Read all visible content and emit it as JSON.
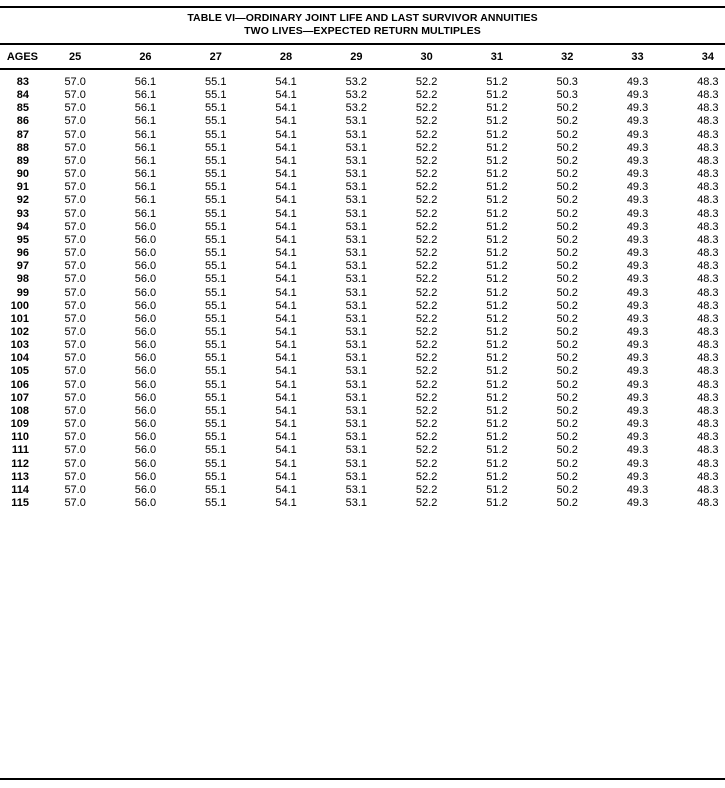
{
  "title": {
    "line1": "TABLE VI—ORDINARY JOINT LIFE AND LAST SURVIVOR ANNUITIES",
    "line2": "TWO LIVES—EXPECTED RETURN MULTIPLES"
  },
  "table": {
    "age_header": "AGES",
    "columns": [
      "25",
      "26",
      "27",
      "28",
      "29",
      "30",
      "31",
      "32",
      "33",
      "34"
    ],
    "rows": [
      {
        "age": "83",
        "values": [
          "57.0",
          "56.1",
          "55.1",
          "54.1",
          "53.2",
          "52.2",
          "51.2",
          "50.3",
          "49.3",
          "48.3"
        ]
      },
      {
        "age": "84",
        "values": [
          "57.0",
          "56.1",
          "55.1",
          "54.1",
          "53.2",
          "52.2",
          "51.2",
          "50.3",
          "49.3",
          "48.3"
        ]
      },
      {
        "age": "85",
        "values": [
          "57.0",
          "56.1",
          "55.1",
          "54.1",
          "53.2",
          "52.2",
          "51.2",
          "50.2",
          "49.3",
          "48.3"
        ]
      },
      {
        "age": "86",
        "values": [
          "57.0",
          "56.1",
          "55.1",
          "54.1",
          "53.1",
          "52.2",
          "51.2",
          "50.2",
          "49.3",
          "48.3"
        ]
      },
      {
        "age": "87",
        "values": [
          "57.0",
          "56.1",
          "55.1",
          "54.1",
          "53.1",
          "52.2",
          "51.2",
          "50.2",
          "49.3",
          "48.3"
        ]
      },
      {
        "age": "88",
        "values": [
          "57.0",
          "56.1",
          "55.1",
          "54.1",
          "53.1",
          "52.2",
          "51.2",
          "50.2",
          "49.3",
          "48.3"
        ]
      },
      {
        "age": "89",
        "values": [
          "57.0",
          "56.1",
          "55.1",
          "54.1",
          "53.1",
          "52.2",
          "51.2",
          "50.2",
          "49.3",
          "48.3"
        ]
      },
      {
        "age": "90",
        "values": [
          "57.0",
          "56.1",
          "55.1",
          "54.1",
          "53.1",
          "52.2",
          "51.2",
          "50.2",
          "49.3",
          "48.3"
        ]
      },
      {
        "age": "91",
        "values": [
          "57.0",
          "56.1",
          "55.1",
          "54.1",
          "53.1",
          "52.2",
          "51.2",
          "50.2",
          "49.3",
          "48.3"
        ]
      },
      {
        "age": "92",
        "values": [
          "57.0",
          "56.1",
          "55.1",
          "54.1",
          "53.1",
          "52.2",
          "51.2",
          "50.2",
          "49.3",
          "48.3"
        ]
      },
      {
        "age": "93",
        "values": [
          "57.0",
          "56.1",
          "55.1",
          "54.1",
          "53.1",
          "52.2",
          "51.2",
          "50.2",
          "49.3",
          "48.3"
        ]
      },
      {
        "age": "94",
        "values": [
          "57.0",
          "56.0",
          "55.1",
          "54.1",
          "53.1",
          "52.2",
          "51.2",
          "50.2",
          "49.3",
          "48.3"
        ]
      },
      {
        "age": "95",
        "values": [
          "57.0",
          "56.0",
          "55.1",
          "54.1",
          "53.1",
          "52.2",
          "51.2",
          "50.2",
          "49.3",
          "48.3"
        ]
      },
      {
        "age": "96",
        "values": [
          "57.0",
          "56.0",
          "55.1",
          "54.1",
          "53.1",
          "52.2",
          "51.2",
          "50.2",
          "49.3",
          "48.3"
        ]
      },
      {
        "age": "97",
        "values": [
          "57.0",
          "56.0",
          "55.1",
          "54.1",
          "53.1",
          "52.2",
          "51.2",
          "50.2",
          "49.3",
          "48.3"
        ]
      },
      {
        "age": "98",
        "values": [
          "57.0",
          "56.0",
          "55.1",
          "54.1",
          "53.1",
          "52.2",
          "51.2",
          "50.2",
          "49.3",
          "48.3"
        ]
      },
      {
        "age": "99",
        "values": [
          "57.0",
          "56.0",
          "55.1",
          "54.1",
          "53.1",
          "52.2",
          "51.2",
          "50.2",
          "49.3",
          "48.3"
        ]
      },
      {
        "age": "100",
        "values": [
          "57.0",
          "56.0",
          "55.1",
          "54.1",
          "53.1",
          "52.2",
          "51.2",
          "50.2",
          "49.3",
          "48.3"
        ]
      },
      {
        "age": "101",
        "values": [
          "57.0",
          "56.0",
          "55.1",
          "54.1",
          "53.1",
          "52.2",
          "51.2",
          "50.2",
          "49.3",
          "48.3"
        ]
      },
      {
        "age": "102",
        "values": [
          "57.0",
          "56.0",
          "55.1",
          "54.1",
          "53.1",
          "52.2",
          "51.2",
          "50.2",
          "49.3",
          "48.3"
        ]
      },
      {
        "age": "103",
        "values": [
          "57.0",
          "56.0",
          "55.1",
          "54.1",
          "53.1",
          "52.2",
          "51.2",
          "50.2",
          "49.3",
          "48.3"
        ]
      },
      {
        "age": "104",
        "values": [
          "57.0",
          "56.0",
          "55.1",
          "54.1",
          "53.1",
          "52.2",
          "51.2",
          "50.2",
          "49.3",
          "48.3"
        ]
      },
      {
        "age": "105",
        "values": [
          "57.0",
          "56.0",
          "55.1",
          "54.1",
          "53.1",
          "52.2",
          "51.2",
          "50.2",
          "49.3",
          "48.3"
        ]
      },
      {
        "age": "106",
        "values": [
          "57.0",
          "56.0",
          "55.1",
          "54.1",
          "53.1",
          "52.2",
          "51.2",
          "50.2",
          "49.3",
          "48.3"
        ]
      },
      {
        "age": "107",
        "values": [
          "57.0",
          "56.0",
          "55.1",
          "54.1",
          "53.1",
          "52.2",
          "51.2",
          "50.2",
          "49.3",
          "48.3"
        ]
      },
      {
        "age": "108",
        "values": [
          "57.0",
          "56.0",
          "55.1",
          "54.1",
          "53.1",
          "52.2",
          "51.2",
          "50.2",
          "49.3",
          "48.3"
        ]
      },
      {
        "age": "109",
        "values": [
          "57.0",
          "56.0",
          "55.1",
          "54.1",
          "53.1",
          "52.2",
          "51.2",
          "50.2",
          "49.3",
          "48.3"
        ]
      },
      {
        "age": "110",
        "values": [
          "57.0",
          "56.0",
          "55.1",
          "54.1",
          "53.1",
          "52.2",
          "51.2",
          "50.2",
          "49.3",
          "48.3"
        ]
      },
      {
        "age": "111",
        "values": [
          "57.0",
          "56.0",
          "55.1",
          "54.1",
          "53.1",
          "52.2",
          "51.2",
          "50.2",
          "49.3",
          "48.3"
        ]
      },
      {
        "age": "112",
        "values": [
          "57.0",
          "56.0",
          "55.1",
          "54.1",
          "53.1",
          "52.2",
          "51.2",
          "50.2",
          "49.3",
          "48.3"
        ]
      },
      {
        "age": "113",
        "values": [
          "57.0",
          "56.0",
          "55.1",
          "54.1",
          "53.1",
          "52.2",
          "51.2",
          "50.2",
          "49.3",
          "48.3"
        ]
      },
      {
        "age": "114",
        "values": [
          "57.0",
          "56.0",
          "55.1",
          "54.1",
          "53.1",
          "52.2",
          "51.2",
          "50.2",
          "49.3",
          "48.3"
        ]
      },
      {
        "age": "115",
        "values": [
          "57.0",
          "56.0",
          "55.1",
          "54.1",
          "53.1",
          "52.2",
          "51.2",
          "50.2",
          "49.3",
          "48.3"
        ]
      }
    ]
  }
}
